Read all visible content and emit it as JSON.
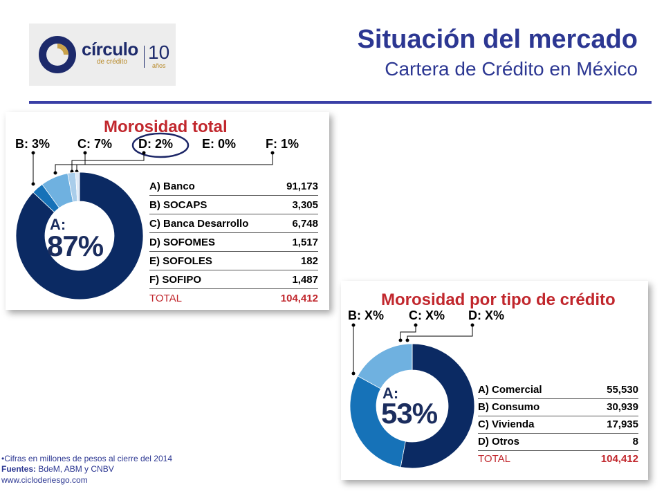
{
  "logo": {
    "brand": "círculo",
    "brand_sub": "de crédito",
    "years": "10",
    "years_sub": "años"
  },
  "header": {
    "title": "Situación del mercado",
    "subtitle": "Cartera de Crédito en México"
  },
  "colors": {
    "accent": "#2c3792",
    "red": "#c1272d",
    "navy": "#0b2a63",
    "blue": "#1672b8",
    "light_blue": "#6fb1e0"
  },
  "panel1": {
    "title": "Morosidad total",
    "segment_labels": [
      "B: 3%",
      "C: 7%",
      "D: 2%",
      "E: 0%",
      "F: 1%"
    ],
    "center_label": "A:",
    "center_value": "87%",
    "rows": [
      {
        "label": "A) Banco",
        "value": "91,173"
      },
      {
        "label": "B) SOCAPS",
        "value": "3,305"
      },
      {
        "label": "C) Banca Desarrollo",
        "value": "6,748"
      },
      {
        "label": "D) SOFOMES",
        "value": "1,517"
      },
      {
        "label": "E) SOFOLES",
        "value": "182"
      },
      {
        "label": "F) SOFIPO",
        "value": "1,487"
      }
    ],
    "total": {
      "label": "TOTAL",
      "value": "104,412"
    },
    "donut_shares": [
      87,
      3,
      7,
      2,
      0,
      1
    ]
  },
  "panel2": {
    "title": "Morosidad por tipo de crédito",
    "segment_labels": [
      "B: X%",
      "C: X%",
      "D: X%"
    ],
    "center_label": "A:",
    "center_value": "53%",
    "rows": [
      {
        "label": "A) Comercial",
        "value": "55,530"
      },
      {
        "label": "B) Consumo",
        "value": "30,939"
      },
      {
        "label": "C) Vivienda",
        "value": "17,935"
      },
      {
        "label": "D) Otros",
        "value": "8"
      }
    ],
    "total": {
      "label": "TOTAL",
      "value": "104,412"
    },
    "donut_shares": [
      53,
      30,
      17,
      0
    ]
  },
  "notes": {
    "line1": "•Cifras en millones de pesos al cierre del 2014",
    "sources_label": "Fuentes:",
    "sources_value": " BdeM, ABM y CNBV",
    "line3": "www.cicloderiesgo.com"
  }
}
